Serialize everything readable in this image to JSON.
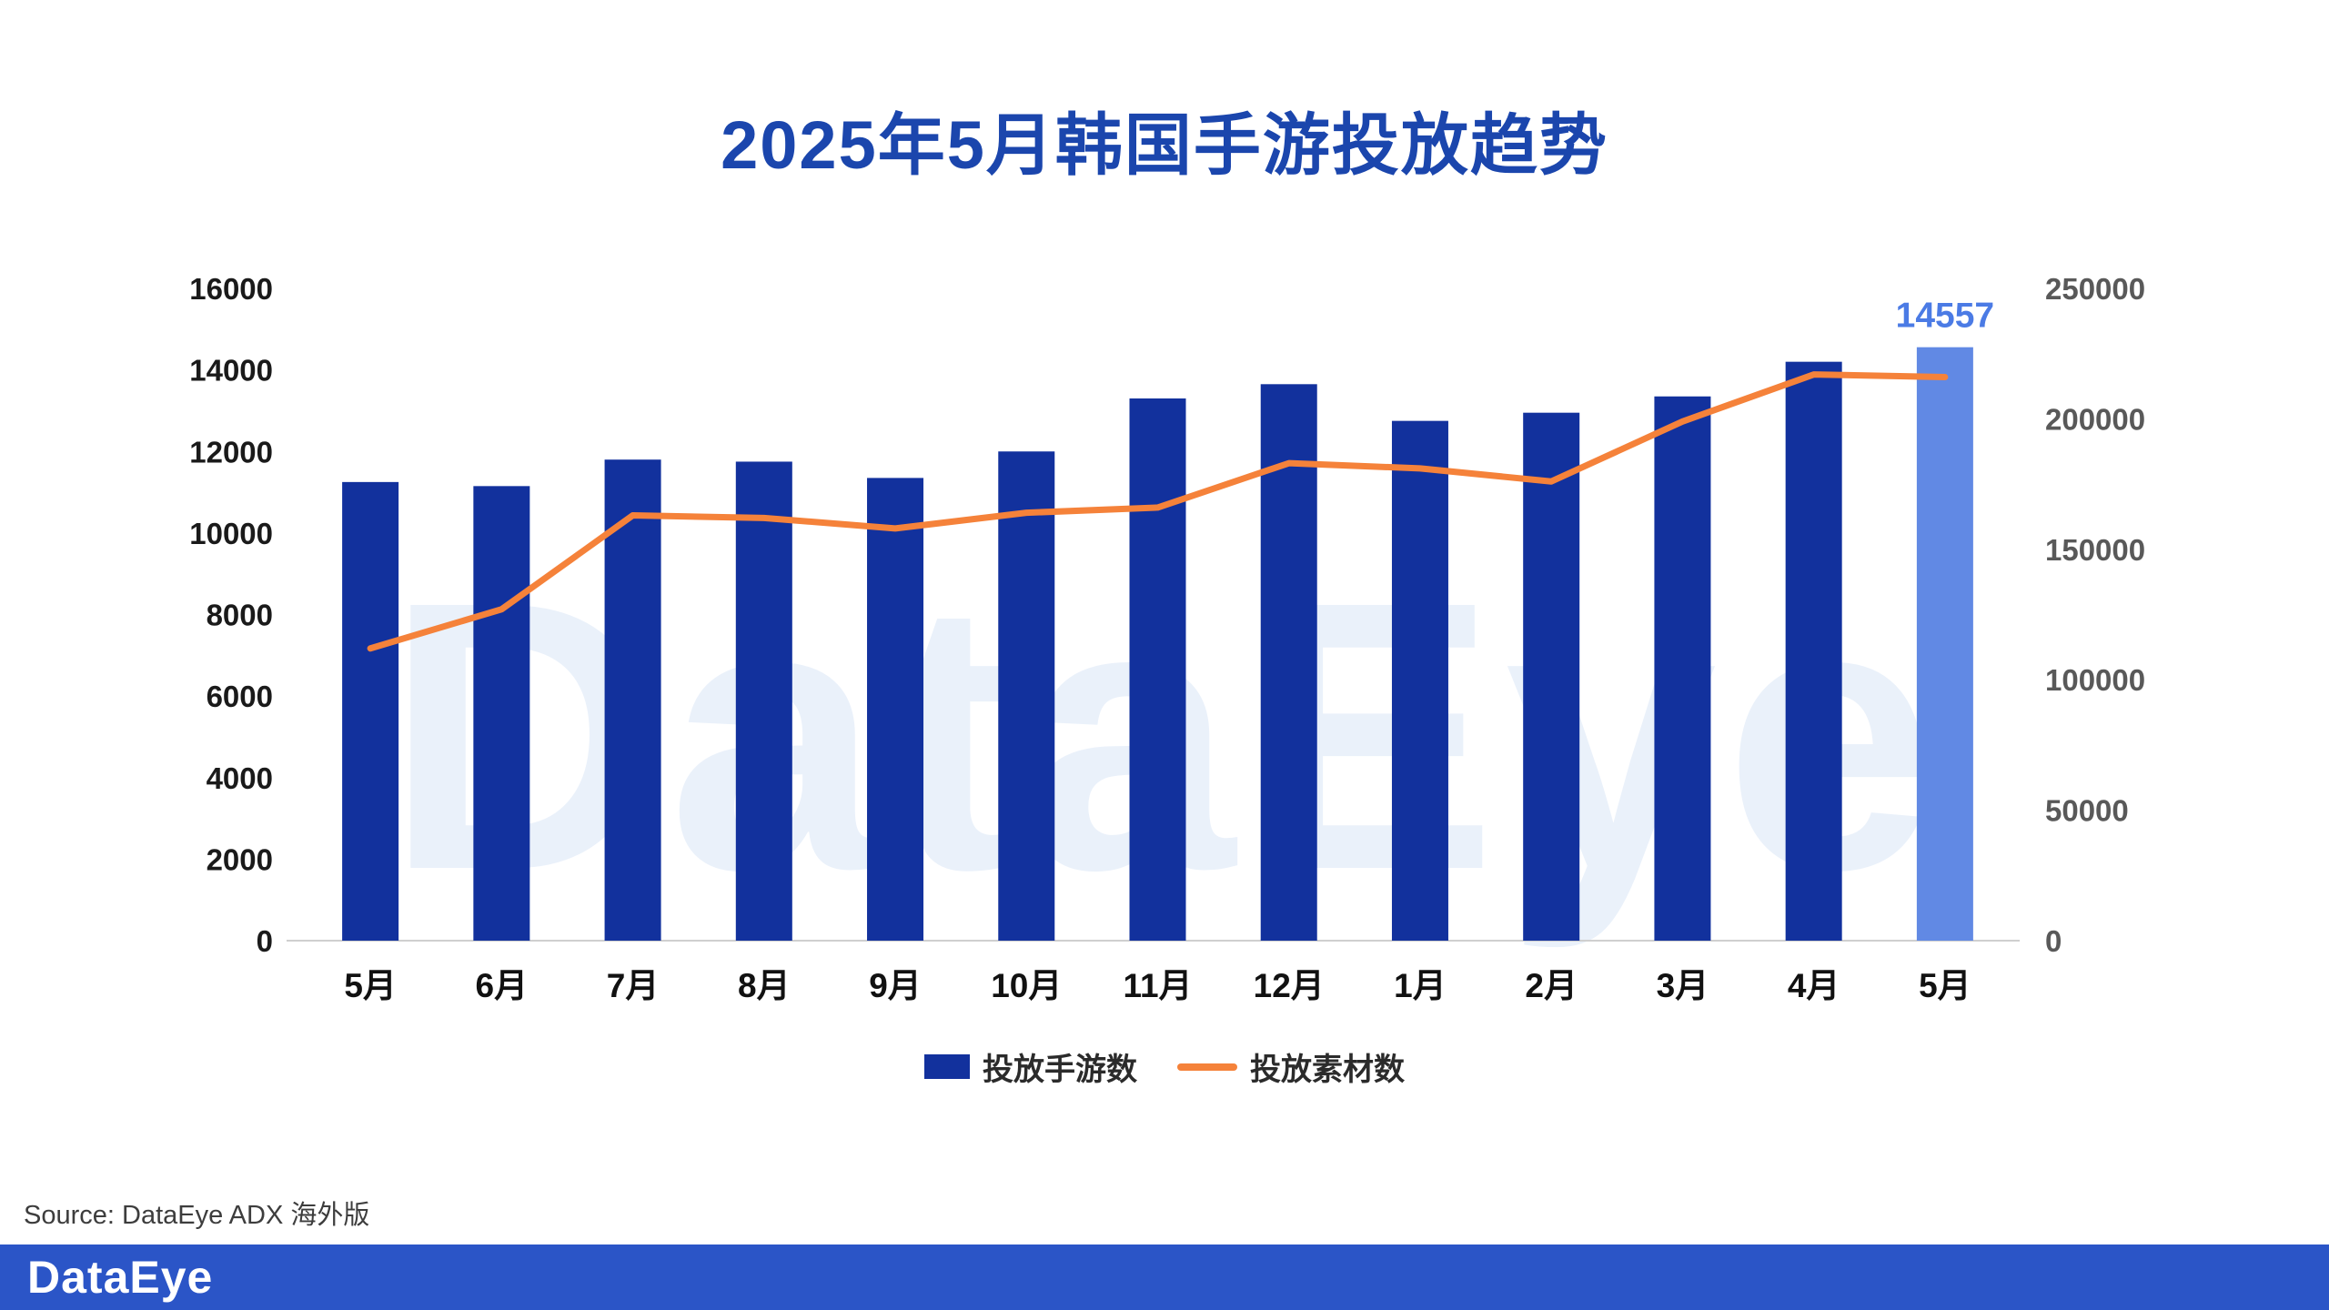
{
  "title": "2025年5月韩国手游投放趋势",
  "watermark": "DataEye",
  "source": "Source: DataEye ADX 海外版",
  "footer": {
    "logo": "DataEye"
  },
  "legend": {
    "bars": "投放手游数",
    "line": "投放素材数"
  },
  "colors": {
    "bar": "#12319d",
    "bar_highlight": "#6189e4",
    "line": "#f5823a",
    "title": "#1b46ad",
    "data_label": "#4b7be5",
    "footer_bg": "#2b55c7"
  },
  "chart_data": {
    "type": "bar+line",
    "title": "2025年5月韩国手游投放趋势",
    "categories": [
      "5月",
      "6月",
      "7月",
      "8月",
      "9月",
      "10月",
      "11月",
      "12月",
      "1月",
      "2月",
      "3月",
      "4月",
      "5月"
    ],
    "series": [
      {
        "name": "投放手游数",
        "type": "bar",
        "axis": "left",
        "values": [
          11250,
          11150,
          11800,
          11750,
          11350,
          12000,
          13300,
          13650,
          12750,
          12950,
          13350,
          14200,
          14557
        ]
      },
      {
        "name": "投放素材数",
        "type": "line",
        "axis": "right",
        "values": [
          112000,
          127000,
          163000,
          162000,
          158000,
          164000,
          166000,
          183000,
          181000,
          176000,
          199000,
          217000,
          216000
        ]
      }
    ],
    "left_axis": {
      "min": 0,
      "max": 16000,
      "step": 2000,
      "ticks": [
        "0",
        "2000",
        "4000",
        "6000",
        "8000",
        "10000",
        "12000",
        "14000",
        "16000"
      ]
    },
    "right_axis": {
      "min": 0,
      "max": 250000,
      "step": 50000,
      "ticks": [
        "0",
        "50000",
        "100000",
        "150000",
        "200000",
        "250000"
      ]
    },
    "highlight_index": 12,
    "data_label": {
      "index": 12,
      "text": "14557"
    },
    "grid": false,
    "legend_position": "bottom"
  }
}
